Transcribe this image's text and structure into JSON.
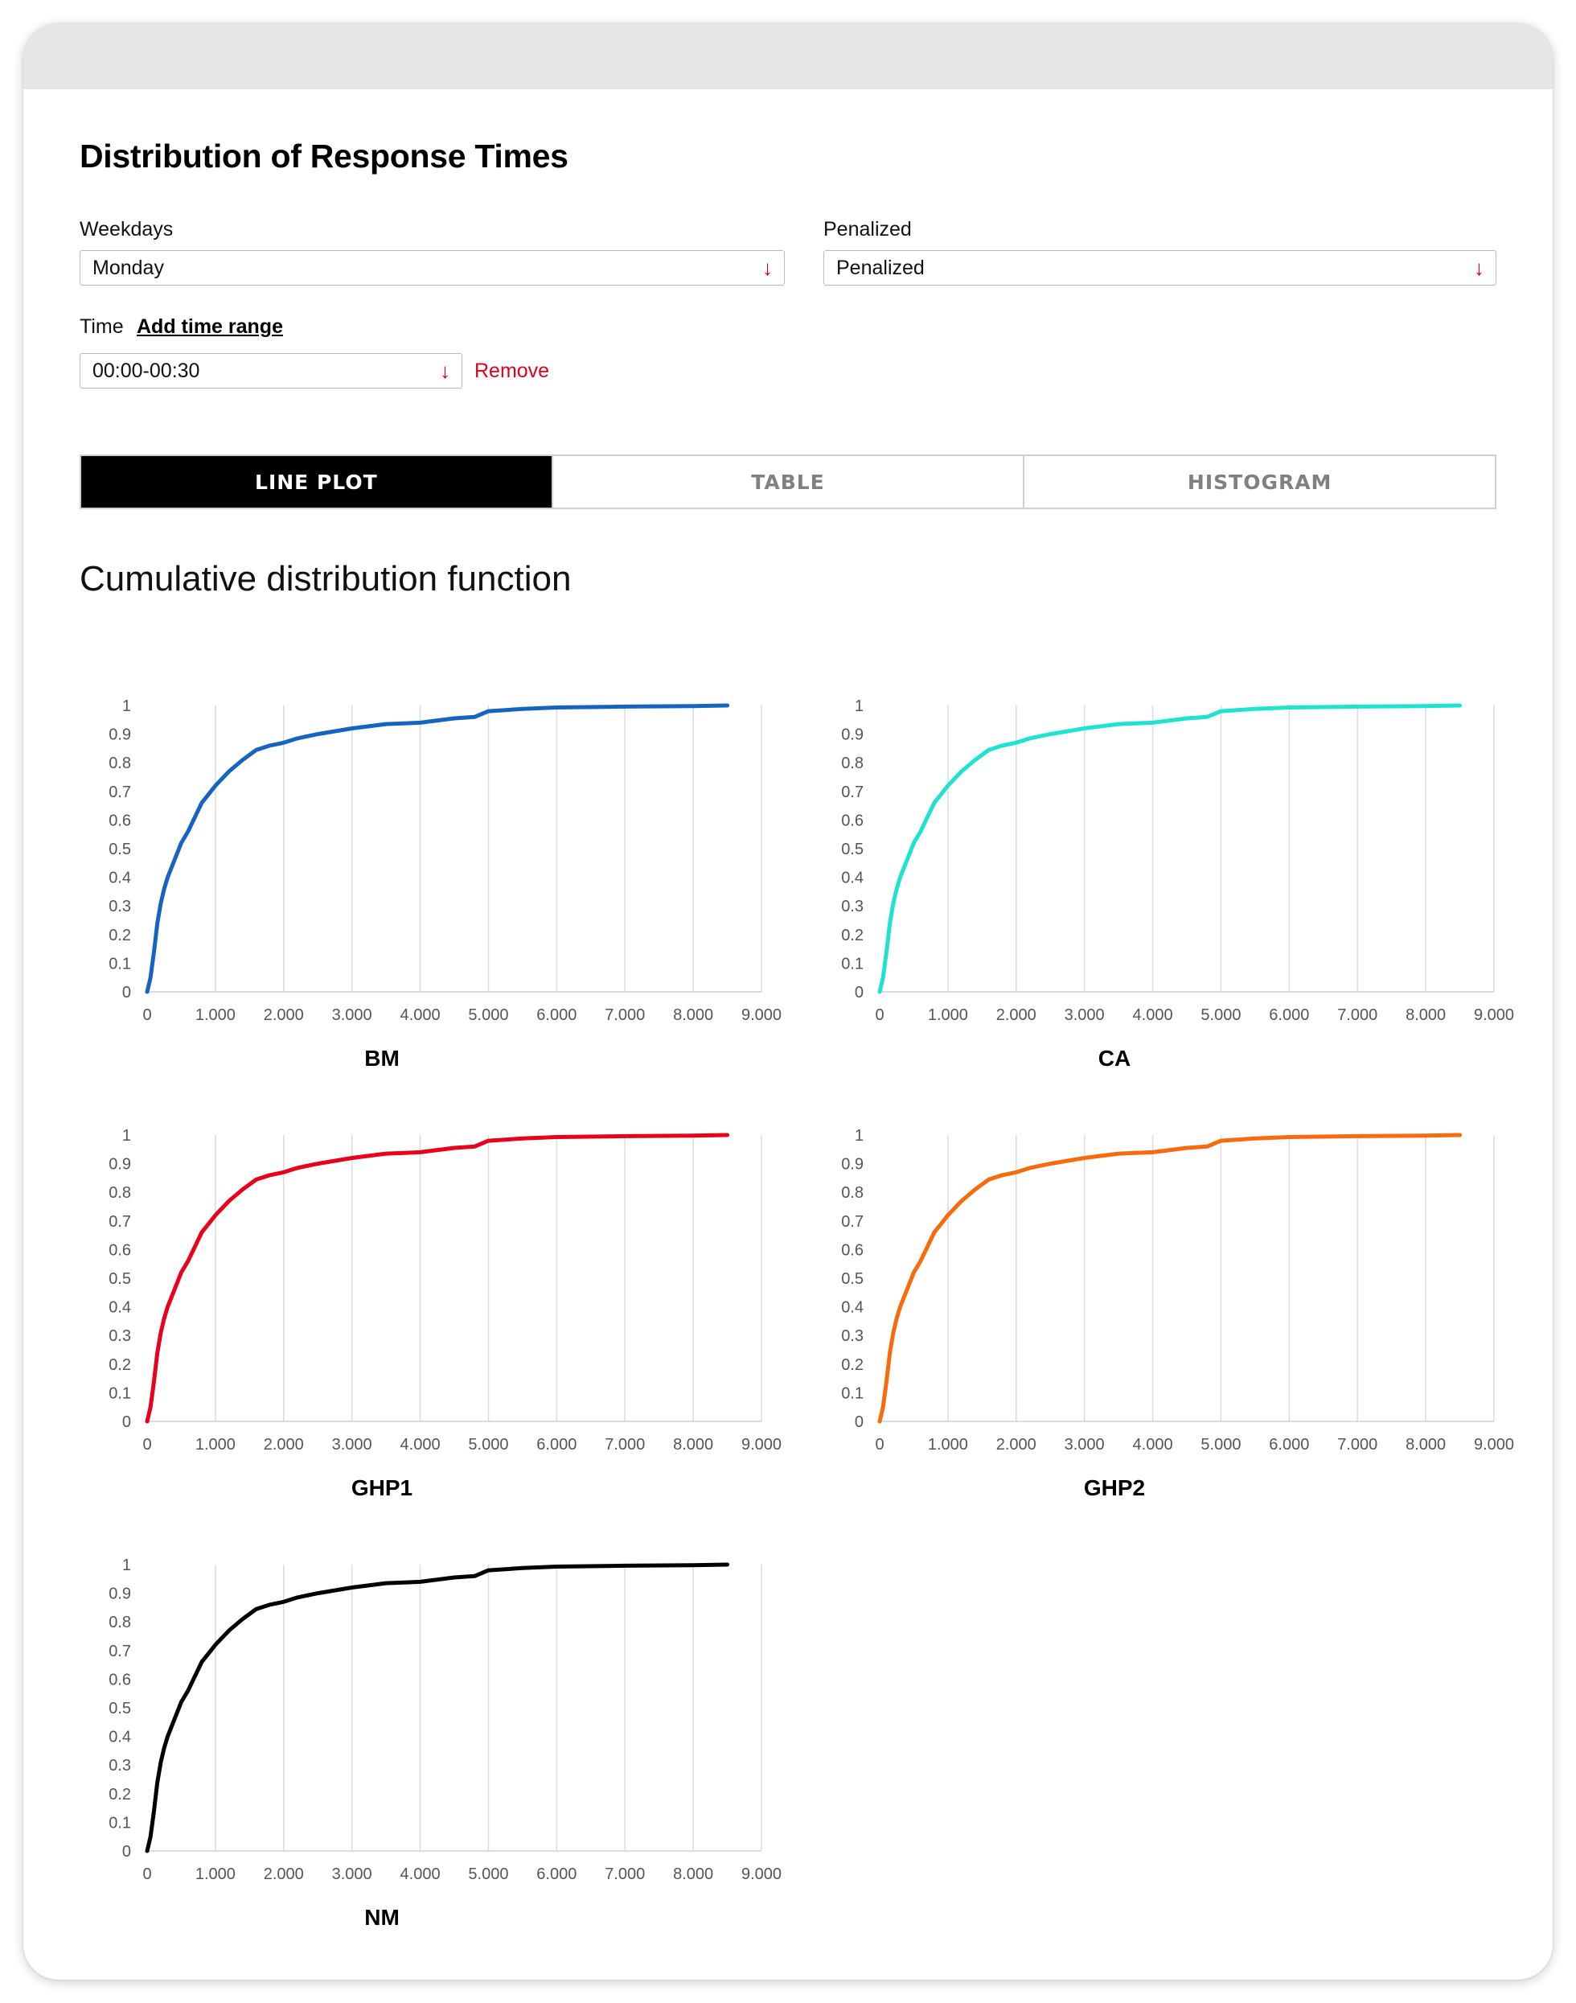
{
  "page": {
    "title": "Distribution of Response Times"
  },
  "filters": {
    "weekdays_label": "Weekdays",
    "weekdays_value": "Monday",
    "penalized_label": "Penalized",
    "penalized_value": "Penalized",
    "time_label": "Time",
    "add_time_range": "Add time range",
    "time_value": "00:00-00:30",
    "remove_label": "Remove",
    "dropdown_icon": "arrow-down-icon"
  },
  "tabs": [
    {
      "label": "LINE PLOT",
      "active": true
    },
    {
      "label": "TABLE",
      "active": false
    },
    {
      "label": "HISTOGRAM",
      "active": false
    }
  ],
  "section": {
    "title": "Cumulative distribution function"
  },
  "chart_data": [
    {
      "type": "line",
      "title": "BM",
      "color": "#1565c0",
      "xlim": [
        0,
        9000
      ],
      "ylim": [
        0,
        1
      ],
      "x_ticks": [
        "0",
        "1.000",
        "2.000",
        "3.000",
        "4.000",
        "5.000",
        "6.000",
        "7.000",
        "8.000",
        "9.000"
      ],
      "y_ticks": [
        "0",
        "0.1",
        "0.2",
        "0.3",
        "0.4",
        "0.5",
        "0.6",
        "0.7",
        "0.8",
        "0.9",
        "1"
      ],
      "grid": "vertical",
      "x": [
        0,
        50,
        100,
        150,
        200,
        250,
        300,
        400,
        500,
        600,
        700,
        800,
        900,
        1000,
        1200,
        1400,
        1600,
        1800,
        2000,
        2200,
        2500,
        3000,
        3500,
        4000,
        4500,
        4800,
        5000,
        5500,
        6000,
        7000,
        8000,
        8500
      ],
      "y": [
        0,
        0.05,
        0.14,
        0.24,
        0.31,
        0.36,
        0.4,
        0.46,
        0.52,
        0.56,
        0.61,
        0.66,
        0.69,
        0.72,
        0.77,
        0.81,
        0.845,
        0.86,
        0.87,
        0.885,
        0.9,
        0.92,
        0.935,
        0.94,
        0.955,
        0.96,
        0.98,
        0.988,
        0.993,
        0.996,
        0.998,
        1.0
      ]
    },
    {
      "type": "line",
      "title": "CA",
      "color": "#1ee3cf",
      "xlim": [
        0,
        9000
      ],
      "ylim": [
        0,
        1
      ],
      "x_ticks": [
        "0",
        "1.000",
        "2.000",
        "3.000",
        "4.000",
        "5.000",
        "6.000",
        "7.000",
        "8.000",
        "9.000"
      ],
      "y_ticks": [
        "0",
        "0.1",
        "0.2",
        "0.3",
        "0.4",
        "0.5",
        "0.6",
        "0.7",
        "0.8",
        "0.9",
        "1"
      ],
      "grid": "vertical",
      "x": [
        0,
        50,
        100,
        150,
        200,
        250,
        300,
        400,
        500,
        600,
        700,
        800,
        900,
        1000,
        1200,
        1400,
        1600,
        1800,
        2000,
        2200,
        2500,
        3000,
        3500,
        4000,
        4500,
        4800,
        5000,
        5500,
        6000,
        7000,
        8000,
        8500
      ],
      "y": [
        0,
        0.05,
        0.14,
        0.24,
        0.31,
        0.36,
        0.4,
        0.46,
        0.52,
        0.56,
        0.61,
        0.66,
        0.69,
        0.72,
        0.77,
        0.81,
        0.845,
        0.86,
        0.87,
        0.885,
        0.9,
        0.92,
        0.935,
        0.94,
        0.955,
        0.96,
        0.98,
        0.988,
        0.993,
        0.996,
        0.998,
        1.0
      ]
    },
    {
      "type": "line",
      "title": "GHP1",
      "color": "#e8001c",
      "xlim": [
        0,
        9000
      ],
      "ylim": [
        0,
        1
      ],
      "x_ticks": [
        "0",
        "1.000",
        "2.000",
        "3.000",
        "4.000",
        "5.000",
        "6.000",
        "7.000",
        "8.000",
        "9.000"
      ],
      "y_ticks": [
        "0",
        "0.1",
        "0.2",
        "0.3",
        "0.4",
        "0.5",
        "0.6",
        "0.7",
        "0.8",
        "0.9",
        "1"
      ],
      "grid": "vertical",
      "x": [
        0,
        50,
        100,
        150,
        200,
        250,
        300,
        400,
        500,
        600,
        700,
        800,
        900,
        1000,
        1200,
        1400,
        1600,
        1800,
        2000,
        2200,
        2500,
        3000,
        3500,
        4000,
        4500,
        4800,
        5000,
        5500,
        6000,
        7000,
        8000,
        8500
      ],
      "y": [
        0,
        0.05,
        0.14,
        0.24,
        0.31,
        0.36,
        0.4,
        0.46,
        0.52,
        0.56,
        0.61,
        0.66,
        0.69,
        0.72,
        0.77,
        0.81,
        0.845,
        0.86,
        0.87,
        0.885,
        0.9,
        0.92,
        0.935,
        0.94,
        0.955,
        0.96,
        0.98,
        0.988,
        0.993,
        0.996,
        0.998,
        1.0
      ]
    },
    {
      "type": "line",
      "title": "GHP2",
      "color": "#f76b0e",
      "xlim": [
        0,
        9000
      ],
      "ylim": [
        0,
        1
      ],
      "x_ticks": [
        "0",
        "1.000",
        "2.000",
        "3.000",
        "4.000",
        "5.000",
        "6.000",
        "7.000",
        "8.000",
        "9.000"
      ],
      "y_ticks": [
        "0",
        "0.1",
        "0.2",
        "0.3",
        "0.4",
        "0.5",
        "0.6",
        "0.7",
        "0.8",
        "0.9",
        "1"
      ],
      "grid": "vertical",
      "x": [
        0,
        50,
        100,
        150,
        200,
        250,
        300,
        400,
        500,
        600,
        700,
        800,
        900,
        1000,
        1200,
        1400,
        1600,
        1800,
        2000,
        2200,
        2500,
        3000,
        3500,
        4000,
        4500,
        4800,
        5000,
        5500,
        6000,
        7000,
        8000,
        8500
      ],
      "y": [
        0,
        0.05,
        0.14,
        0.24,
        0.31,
        0.36,
        0.4,
        0.46,
        0.52,
        0.56,
        0.61,
        0.66,
        0.69,
        0.72,
        0.77,
        0.81,
        0.845,
        0.86,
        0.87,
        0.885,
        0.9,
        0.92,
        0.935,
        0.94,
        0.955,
        0.96,
        0.98,
        0.988,
        0.993,
        0.996,
        0.998,
        1.0
      ]
    },
    {
      "type": "line",
      "title": "NM",
      "color": "#000000",
      "xlim": [
        0,
        9000
      ],
      "ylim": [
        0,
        1
      ],
      "x_ticks": [
        "0",
        "1.000",
        "2.000",
        "3.000",
        "4.000",
        "5.000",
        "6.000",
        "7.000",
        "8.000",
        "9.000"
      ],
      "y_ticks": [
        "0",
        "0.1",
        "0.2",
        "0.3",
        "0.4",
        "0.5",
        "0.6",
        "0.7",
        "0.8",
        "0.9",
        "1"
      ],
      "grid": "vertical",
      "x": [
        0,
        50,
        100,
        150,
        200,
        250,
        300,
        400,
        500,
        600,
        700,
        800,
        900,
        1000,
        1200,
        1400,
        1600,
        1800,
        2000,
        2200,
        2500,
        3000,
        3500,
        4000,
        4500,
        4800,
        5000,
        5500,
        6000,
        7000,
        8000,
        8500
      ],
      "y": [
        0,
        0.05,
        0.14,
        0.24,
        0.31,
        0.36,
        0.4,
        0.46,
        0.52,
        0.56,
        0.61,
        0.66,
        0.69,
        0.72,
        0.77,
        0.81,
        0.845,
        0.86,
        0.87,
        0.885,
        0.9,
        0.92,
        0.935,
        0.94,
        0.955,
        0.96,
        0.98,
        0.988,
        0.993,
        0.996,
        0.998,
        1.0
      ]
    }
  ]
}
